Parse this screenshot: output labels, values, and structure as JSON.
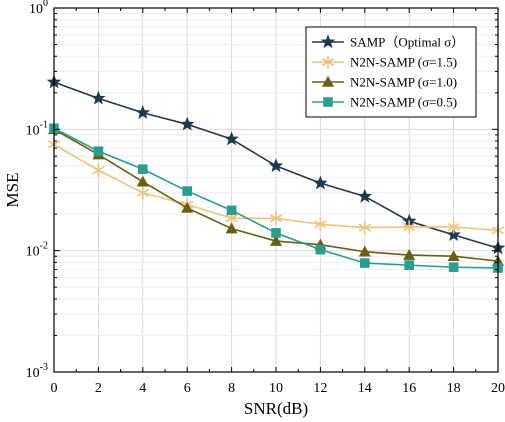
{
  "chart_data": {
    "type": "line",
    "title": "",
    "xlabel": "SNR(dB)",
    "ylabel": "MSE",
    "xlim": [
      0,
      20
    ],
    "ylim": [
      0.001,
      1
    ],
    "yscale": "log",
    "grid": true,
    "legend_position": "top-right",
    "x_ticks": [
      0,
      2,
      4,
      6,
      8,
      10,
      12,
      14,
      16,
      18,
      20
    ],
    "x_tick_labels": [
      "0",
      "2",
      "4",
      "6",
      "8",
      "10",
      "12",
      "14",
      "16",
      "18",
      "20"
    ],
    "y_ticks": [
      0.001,
      0.01,
      0.1,
      1
    ],
    "y_tick_labels": [
      {
        "base": "10",
        "exp": "-3"
      },
      {
        "base": "10",
        "exp": "-2"
      },
      {
        "base": "10",
        "exp": "-1"
      },
      {
        "base": "10",
        "exp": "0"
      }
    ],
    "x": [
      0,
      2,
      4,
      6,
      8,
      10,
      12,
      14,
      16,
      18,
      20
    ],
    "series": [
      {
        "name": "SAMP（Optimal σ）",
        "color": "#1f3a4d",
        "marker": "star",
        "values": [
          0.245,
          0.18,
          0.137,
          0.11,
          0.083,
          0.05,
          0.036,
          0.028,
          0.0175,
          0.0135,
          0.0105
        ]
      },
      {
        "name": "N2N-SAMP  (σ=1.5)",
        "color": "#f1c27d",
        "marker": "asterisk",
        "values": [
          0.075,
          0.046,
          0.03,
          0.024,
          0.0185,
          0.0185,
          0.0165,
          0.0155,
          0.0157,
          0.0157,
          0.0147
        ]
      },
      {
        "name": "N2N-SAMP  (σ=1.0)",
        "color": "#6b5e12",
        "marker": "triangle",
        "values": [
          0.1,
          0.062,
          0.037,
          0.0225,
          0.0152,
          0.012,
          0.0112,
          0.0098,
          0.0092,
          0.009,
          0.0082
        ]
      },
      {
        "name": "N2N-SAMP  (σ=0.5)",
        "color": "#2a9d8f",
        "marker": "square",
        "values": [
          0.102,
          0.066,
          0.047,
          0.031,
          0.0215,
          0.014,
          0.0102,
          0.0079,
          0.0076,
          0.0073,
          0.0072
        ]
      }
    ]
  }
}
